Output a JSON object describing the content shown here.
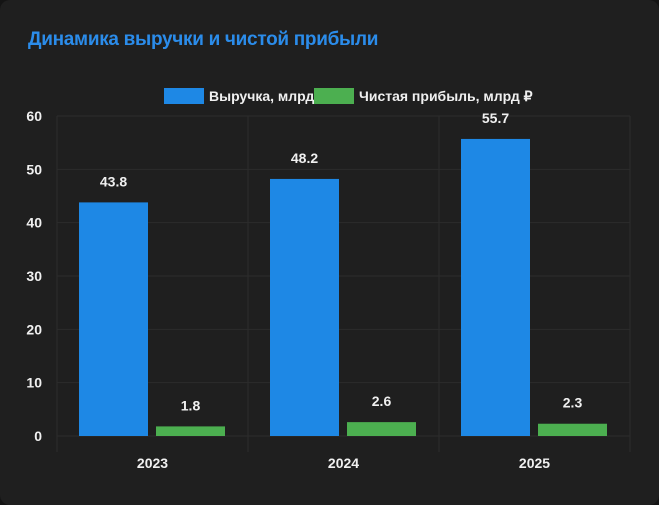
{
  "chart_data": {
    "type": "bar",
    "title": "Динамика выручки и чистой прибыли",
    "categories": [
      "2023",
      "2024",
      "2025"
    ],
    "series": [
      {
        "name": "Выручка, млрд ₽",
        "color": "#1e88e5",
        "values": [
          43.8,
          48.2,
          55.7
        ]
      },
      {
        "name": "Чистая прибыль, млрд ₽",
        "color": "#4caf50",
        "values": [
          1.8,
          2.6,
          2.3
        ]
      }
    ],
    "yticks": [
      "0",
      "10",
      "20",
      "30",
      "40",
      "50",
      "60"
    ],
    "ylim": [
      0,
      60
    ],
    "xlabel": "",
    "ylabel": "",
    "grid": true,
    "legend": "top-center",
    "data_labels": true
  }
}
